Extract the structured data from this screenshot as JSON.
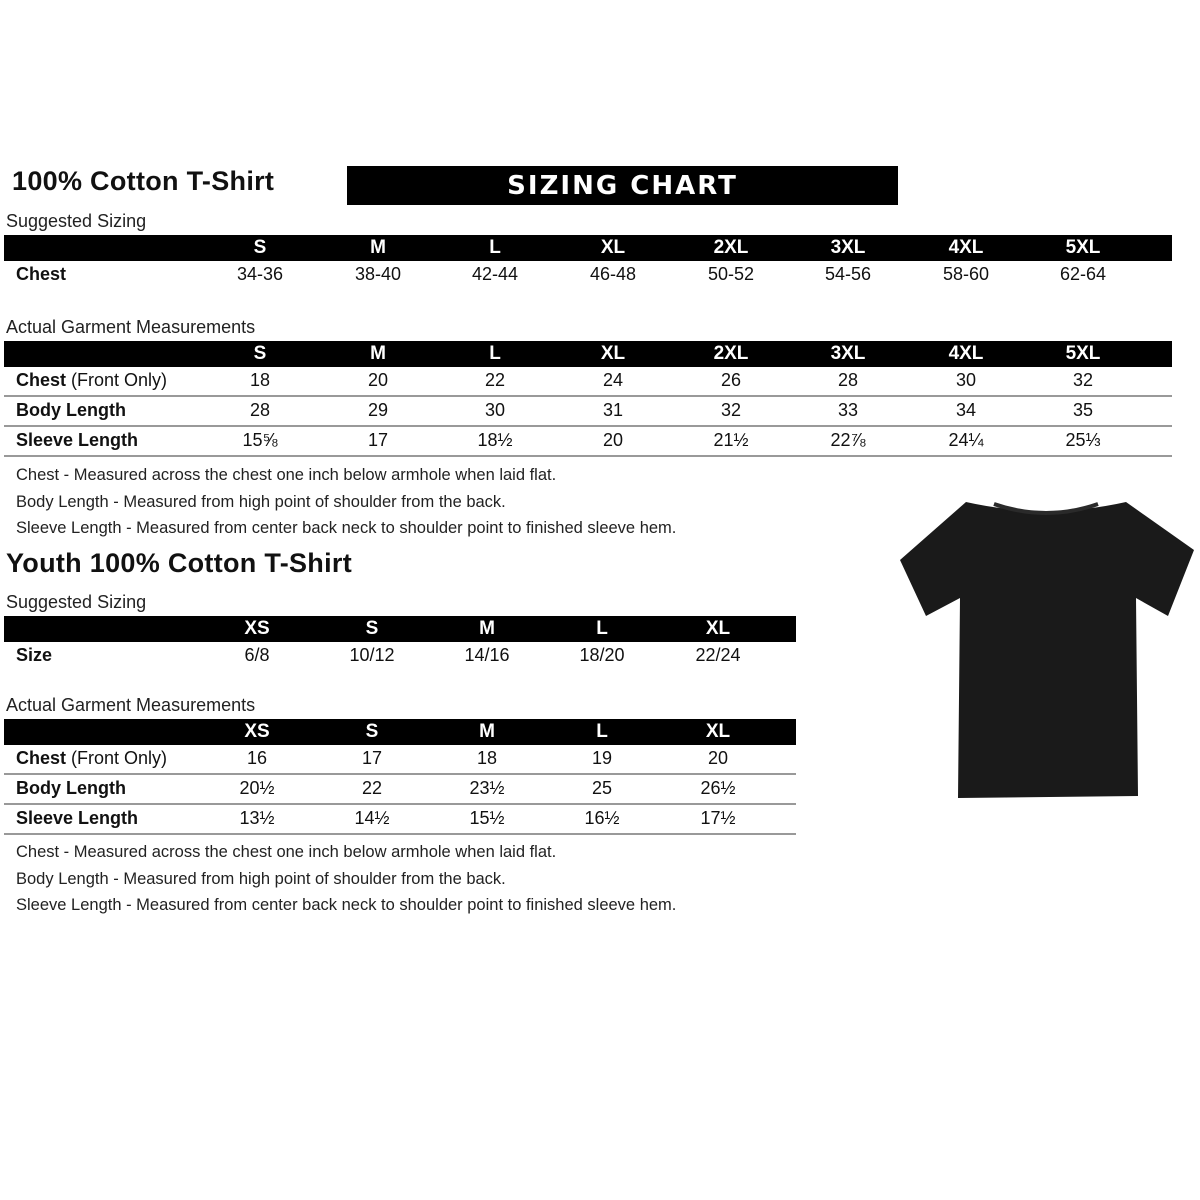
{
  "banner": "SIZING CHART",
  "adult": {
    "title": "100% Cotton T-Shirt",
    "suggested_label": "Suggested Sizing",
    "sizes": [
      "S",
      "M",
      "L",
      "XL",
      "2XL",
      "3XL",
      "4XL",
      "5XL"
    ],
    "suggested_rows": [
      {
        "label": "Chest",
        "values": [
          "34-36",
          "38-40",
          "42-44",
          "46-48",
          "50-52",
          "54-56",
          "58-60",
          "62-64"
        ]
      }
    ],
    "actual_label": "Actual Garment Measurements",
    "actual_rows": [
      {
        "label": "Chest",
        "label_extra": " (Front Only)",
        "values": [
          "18",
          "20",
          "22",
          "24",
          "26",
          "28",
          "30",
          "32"
        ]
      },
      {
        "label": "Body Length",
        "values": [
          "28",
          "29",
          "30",
          "31",
          "32",
          "33",
          "34",
          "35"
        ]
      },
      {
        "label": "Sleeve Length",
        "values": [
          "15⅝",
          "17",
          "18½",
          "20",
          "21½",
          "22⅞",
          "24¼",
          "25⅓"
        ]
      }
    ],
    "notes": [
      "Chest - Measured across the chest one inch below armhole when laid flat.",
      "Body Length - Measured from high point of shoulder from the back.",
      "Sleeve Length - Measured from center back neck to shoulder point to finished sleeve hem."
    ]
  },
  "youth": {
    "title": "Youth 100% Cotton T-Shirt",
    "suggested_label": "Suggested Sizing",
    "sizes": [
      "XS",
      "S",
      "M",
      "L",
      "XL"
    ],
    "suggested_rows": [
      {
        "label": "Size",
        "values": [
          "6/8",
          "10/12",
          "14/16",
          "18/20",
          "22/24"
        ]
      }
    ],
    "actual_label": "Actual Garment Measurements",
    "actual_rows": [
      {
        "label": "Chest",
        "label_extra": " (Front Only)",
        "values": [
          "16",
          "17",
          "18",
          "19",
          "20"
        ]
      },
      {
        "label": "Body Length",
        "values": [
          "20½",
          "22",
          "23½",
          "25",
          "26½"
        ]
      },
      {
        "label": "Sleeve Length",
        "values": [
          "13½",
          "14½",
          "15½",
          "16½",
          "17½"
        ]
      }
    ],
    "notes": [
      "Chest - Measured across the chest one inch below armhole when laid flat.",
      "Body Length - Measured from high point of shoulder from the back.",
      "Sleeve Length - Measured from center back neck to shoulder point to finished sleeve hem."
    ]
  },
  "colors": {
    "header_bg": "#000000",
    "rule": "#999999",
    "shirt": "#1a1a1a"
  }
}
